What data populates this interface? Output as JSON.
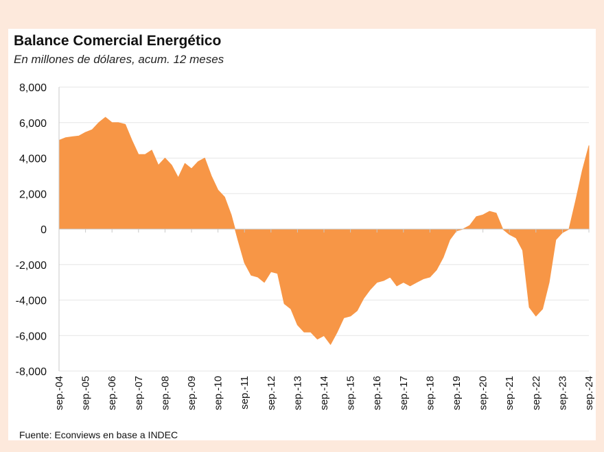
{
  "chart_data": {
    "type": "area",
    "title": "Balance Comercial Energético",
    "subtitle": "En millones de dólares, acum. 12 meses",
    "source": "Fuente: Econviews en base a INDEC",
    "xlabel": "",
    "ylabel": "",
    "ylim": [
      -8000,
      8000
    ],
    "yticks": [
      "8,000",
      "6,000",
      "4,000",
      "2,000",
      "0",
      "-2,000",
      "-4,000",
      "-6,000",
      "-8,000"
    ],
    "xticks": [
      "sep.-04",
      "sep.-05",
      "sep.-06",
      "sep.-07",
      "sep.-08",
      "sep.-09",
      "sep.-10",
      "sep.-11",
      "sep.-12",
      "sep.-13",
      "sep.-14",
      "sep.-15",
      "sep.-16",
      "sep.-17",
      "sep.-18",
      "sep.-19",
      "sep.-20",
      "sep.-21",
      "sep.-22",
      "sep.-23",
      "sep.-24"
    ],
    "grid": true,
    "color": "#f79646",
    "frequency": "quarterly, sep-04 to sep-24",
    "values": [
      5000,
      5150,
      5200,
      5250,
      5450,
      5600,
      6000,
      6300,
      6000,
      6000,
      5900,
      5000,
      4200,
      4200,
      4450,
      3600,
      4000,
      3600,
      2900,
      3700,
      3400,
      3800,
      4000,
      3000,
      2200,
      1800,
      800,
      -600,
      -1900,
      -2600,
      -2700,
      -3000,
      -2400,
      -2500,
      -4200,
      -4500,
      -5400,
      -5800,
      -5800,
      -6200,
      -6000,
      -6500,
      -5800,
      -5000,
      -4900,
      -4600,
      -3900,
      -3400,
      -3000,
      -2900,
      -2700,
      -3200,
      -3000,
      -3200,
      -3000,
      -2800,
      -2700,
      -2300,
      -1600,
      -600,
      -100,
      0,
      200,
      700,
      800,
      1000,
      900,
      0,
      -300,
      -500,
      -1200,
      -4400,
      -4900,
      -4500,
      -3000,
      -600,
      -200,
      0,
      1600,
      3300,
      4700
    ]
  }
}
